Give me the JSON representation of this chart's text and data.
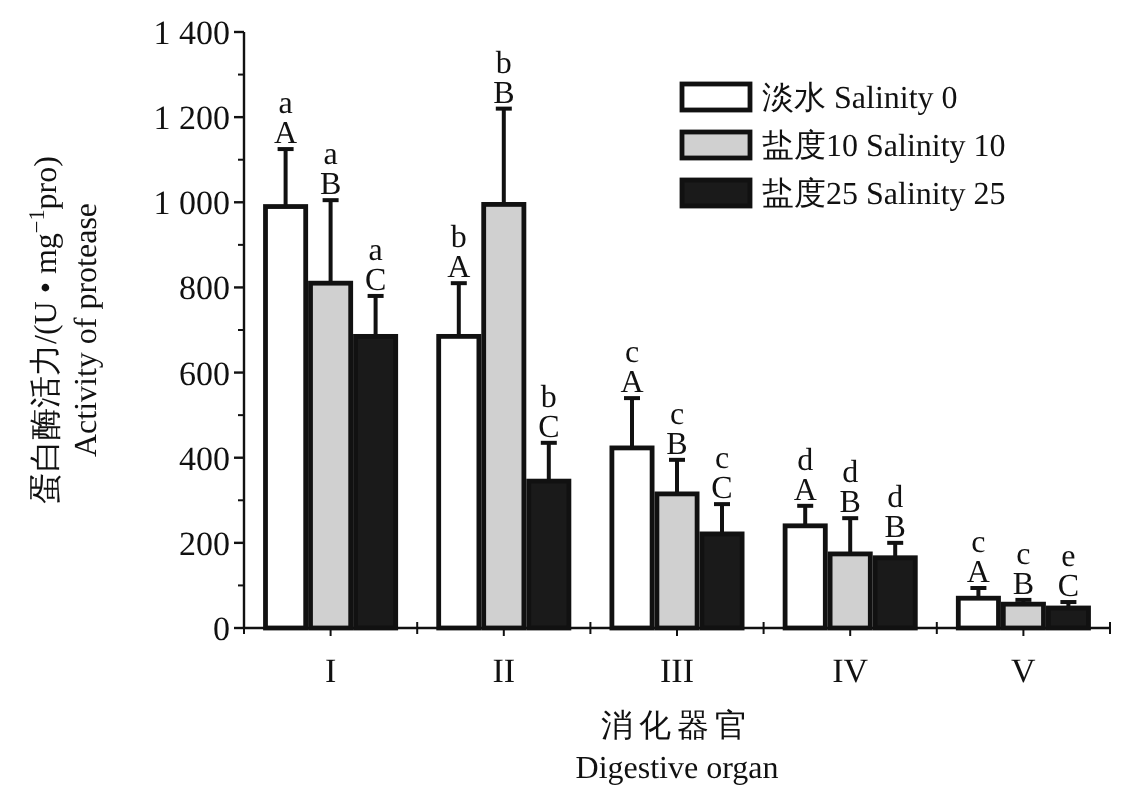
{
  "chart_data": {
    "type": "bar",
    "ylabel": "蛋白酶活力/(U • mg$^{−1}$pro)\nActivity of protease",
    "xlabel": "消化器官\nDigestive organ",
    "categories": [
      "I",
      "II",
      "III",
      "IV",
      "V"
    ],
    "ylim": [
      0,
      1400
    ],
    "yticks": [
      0,
      200,
      400,
      600,
      800,
      {
        "value": 1000,
        "label": "1 000"
      },
      {
        "value": 1200,
        "label": "1 200"
      },
      {
        "value": 1400,
        "label": "1 400"
      }
    ],
    "legend": "top right",
    "grid": false,
    "series": [
      {
        "name": "淡水 Salinity 0",
        "color": "#ffffff",
        "values": [
          990,
          685,
          423,
          240,
          70
        ],
        "errors": [
          [
            990,
            1125
          ],
          [
            685,
            810
          ],
          [
            423,
            540
          ],
          [
            240,
            287
          ],
          [
            70,
            94
          ]
        ],
        "value_labels": [
          "a\nA",
          "b\nA",
          "c\nA",
          "d\nA",
          "c\nA"
        ]
      },
      {
        "name": "盐度10 Salinity 10",
        "color": "#d0d0d0",
        "values": [
          810,
          995,
          315,
          174,
          56
        ],
        "errors": [
          [
            810,
            1005
          ],
          [
            995,
            1220
          ],
          [
            315,
            395
          ],
          [
            174,
            258
          ],
          [
            56,
            66
          ]
        ],
        "value_labels": [
          "a\nB",
          "b\nB",
          "c\nB",
          "d\nB",
          "c\nB"
        ]
      },
      {
        "name": "盐度25 Salinity 25",
        "color": "#1a1a1a",
        "values": [
          685,
          345,
          221,
          165,
          47
        ],
        "errors": [
          [
            685,
            780
          ],
          [
            345,
            435
          ],
          [
            221,
            291
          ],
          [
            165,
            200
          ],
          [
            47,
            61
          ]
        ],
        "value_labels": [
          "a\nC",
          "b\nC",
          "c\nC",
          "d\nB",
          "e\nC"
        ]
      }
    ]
  }
}
